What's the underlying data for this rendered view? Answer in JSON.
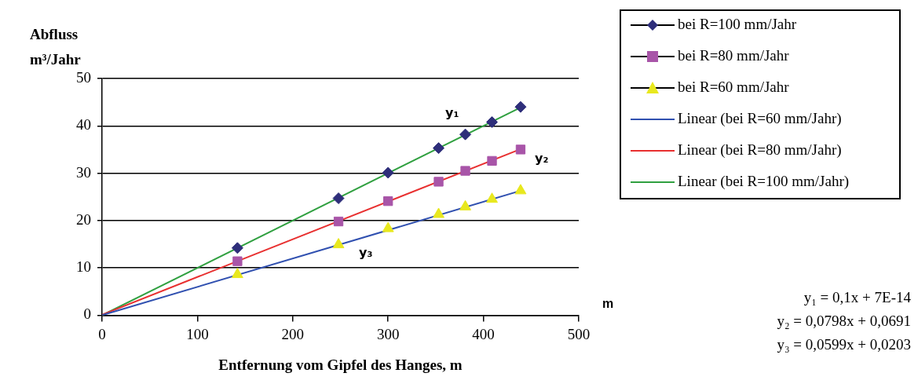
{
  "chart_data": {
    "type": "scatter",
    "xlabel": "Entfernung vom Gipfel des Hanges, m",
    "ylabel": "Abfluss m³/Jahr",
    "xlim": [
      0,
      500
    ],
    "xticks": [
      0,
      100,
      200,
      300,
      400,
      500
    ],
    "ylim": [
      0,
      50
    ],
    "yticks": [
      0,
      10,
      20,
      30,
      40,
      50
    ],
    "grid": "y",
    "legend": "right",
    "series": [
      {
        "name": "bei R=100 mm/Jahr",
        "type": "scatter",
        "marker": "diamond",
        "color": "#2e2e7a",
        "x": [
          142,
          248,
          300,
          353,
          381,
          409,
          439
        ],
        "values": [
          14.2,
          24.7,
          30.1,
          35.3,
          38.2,
          40.8,
          44
        ]
      },
      {
        "name": "bei R=80 mm/Jahr",
        "type": "scatter",
        "marker": "square",
        "color": "#a855a8",
        "x": [
          142,
          248,
          300,
          353,
          381,
          409,
          439
        ],
        "values": [
          11.4,
          19.8,
          24.1,
          28.2,
          30.5,
          32.6,
          35
        ]
      },
      {
        "name": "bei R=60 mm/Jahr",
        "type": "scatter",
        "marker": "triangle",
        "color": "#e8e81e",
        "x": [
          142,
          248,
          300,
          353,
          381,
          409,
          439
        ],
        "values": [
          8.6,
          14.9,
          18.3,
          21.3,
          22.9,
          24.5,
          26.3
        ]
      },
      {
        "name": "Linear (bei R=60 mm/Jahr)",
        "type": "line",
        "marker": "none",
        "color": "#3050b0",
        "x": [
          0,
          439
        ],
        "values": [
          0,
          26.3
        ]
      },
      {
        "name": "Linear (bei R=80 mm/Jahr)",
        "type": "line",
        "marker": "none",
        "color": "#e83030",
        "x": [
          0,
          439
        ],
        "values": [
          0.1,
          35.1
        ]
      },
      {
        "name": "Linear (bei R=100 mm/Jahr)",
        "type": "line",
        "marker": "none",
        "color": "#30a040",
        "x": [
          0,
          439
        ],
        "values": [
          0,
          43.9
        ]
      }
    ],
    "annotations": [
      "y₁",
      "y₂",
      "y₃",
      "m",
      "y₁ = 0,1x + 7E-14",
      "y₂ = 0,0798x + 0,0691",
      "y₃ = 0,0599x + 0,0203"
    ]
  }
}
